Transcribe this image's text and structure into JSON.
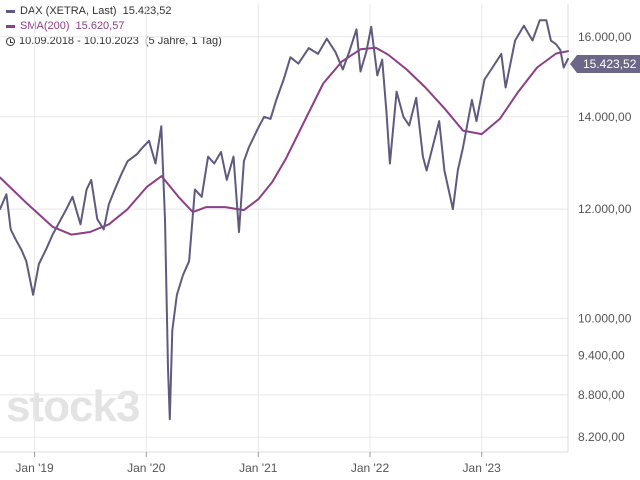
{
  "legend": {
    "dax_label": "DAX (XETRA, Last)",
    "dax_value": "15.423,52",
    "sma_label": "SMA(200)",
    "sma_value": "15.620,57",
    "range_label": "10.09.2018 - 10.10.2023",
    "range_detail": "(5 Jahre, 1 Tag)"
  },
  "watermark": "stock3",
  "colors": {
    "dax": "#5f5a7e",
    "sma": "#8e3d87",
    "grid": "#e8e8e8",
    "badge": "#6c6787"
  },
  "chart_data": {
    "type": "line",
    "log_scale": true,
    "grid": true,
    "ylim": [
      8000,
      16900
    ],
    "xlim": [
      "2018-09-10",
      "2023-10-10"
    ],
    "y_ticks": [
      8200,
      8800,
      9400,
      10000,
      12000,
      14000,
      16000
    ],
    "y_tick_labels": [
      "8.200,00",
      "8.800,00",
      "9.400,00",
      "10.000,00",
      "12.000,00",
      "14.000,00",
      "16.000,00"
    ],
    "x_ticks": [
      "2019-01-01",
      "2020-01-01",
      "2021-01-01",
      "2022-01-01",
      "2023-01-01"
    ],
    "x_tick_labels": [
      "Jan '19",
      "Jan '20",
      "Jan '21",
      "Jan '22",
      "Jan '23"
    ],
    "last_price_label": "15.423,52",
    "series": [
      {
        "name": "DAX (XETRA, Last)",
        "x": [
          "2018-09-10",
          "2018-10-01",
          "2018-10-15",
          "2018-11-01",
          "2018-11-20",
          "2018-12-05",
          "2018-12-27",
          "2019-01-15",
          "2019-02-10",
          "2019-03-01",
          "2019-04-15",
          "2019-05-05",
          "2019-05-31",
          "2019-06-20",
          "2019-07-05",
          "2019-07-25",
          "2019-08-15",
          "2019-09-01",
          "2019-09-20",
          "2019-10-10",
          "2019-11-01",
          "2019-12-01",
          "2019-12-20",
          "2020-01-10",
          "2020-01-31",
          "2020-02-19",
          "2020-03-02",
          "2020-03-12",
          "2020-03-18",
          "2020-03-26",
          "2020-04-10",
          "2020-04-30",
          "2020-05-20",
          "2020-06-08",
          "2020-06-30",
          "2020-07-21",
          "2020-08-10",
          "2020-09-01",
          "2020-09-20",
          "2020-10-12",
          "2020-10-30",
          "2020-11-15",
          "2020-12-01",
          "2020-12-30",
          "2021-01-20",
          "2021-02-10",
          "2021-03-01",
          "2021-03-25",
          "2021-04-16",
          "2021-05-12",
          "2021-06-15",
          "2021-07-15",
          "2021-08-13",
          "2021-09-10",
          "2021-10-04",
          "2021-10-25",
          "2021-11-18",
          "2021-12-01",
          "2021-12-20",
          "2022-01-05",
          "2022-01-25",
          "2022-02-10",
          "2022-02-24",
          "2022-03-07",
          "2022-03-29",
          "2022-04-20",
          "2022-05-09",
          "2022-06-01",
          "2022-06-23",
          "2022-07-05",
          "2022-08-15",
          "2022-09-01",
          "2022-09-29",
          "2022-10-15",
          "2022-11-01",
          "2022-11-30",
          "2022-12-15",
          "2023-01-10",
          "2023-02-01",
          "2023-03-06",
          "2023-03-20",
          "2023-04-20",
          "2023-05-19",
          "2023-06-16",
          "2023-07-10",
          "2023-07-31",
          "2023-08-15",
          "2023-09-01",
          "2023-09-15",
          "2023-09-26",
          "2023-10-10"
        ],
        "y": [
          12000,
          12300,
          11600,
          11400,
          11200,
          11000,
          10400,
          10950,
          11250,
          11500,
          12000,
          12250,
          11700,
          12400,
          12600,
          11800,
          11600,
          12100,
          12400,
          12700,
          13000,
          13150,
          13300,
          13450,
          12950,
          13780,
          11800,
          9200,
          8450,
          9800,
          10400,
          10750,
          11000,
          12400,
          12250,
          13100,
          12950,
          13200,
          12600,
          13100,
          11550,
          13000,
          13300,
          13720,
          14000,
          13950,
          14400,
          14900,
          15460,
          15300,
          15700,
          15550,
          15950,
          15600,
          15150,
          15600,
          16200,
          15100,
          15600,
          16270,
          15000,
          15400,
          14100,
          12950,
          14600,
          14000,
          13800,
          14450,
          13100,
          12800,
          13900,
          12800,
          12000,
          12800,
          13300,
          14400,
          13900,
          14900,
          15150,
          15550,
          14700,
          15900,
          16300,
          15900,
          16450,
          16450,
          15900,
          15800,
          15650,
          15200,
          15423.52
        ]
      },
      {
        "name": "SMA(200)",
        "x": [
          "2018-09-10",
          "2018-12-01",
          "2019-03-01",
          "2019-05-01",
          "2019-07-01",
          "2019-09-01",
          "2019-11-01",
          "2020-01-02",
          "2020-02-20",
          "2020-04-15",
          "2020-06-01",
          "2020-07-15",
          "2020-09-15",
          "2020-11-15",
          "2021-01-01",
          "2021-02-15",
          "2021-04-01",
          "2021-06-01",
          "2021-08-01",
          "2021-10-01",
          "2021-12-01",
          "2022-01-20",
          "2022-03-01",
          "2022-05-01",
          "2022-07-01",
          "2022-09-01",
          "2022-11-01",
          "2023-01-01",
          "2023-03-01",
          "2023-05-01",
          "2023-07-01",
          "2023-09-01",
          "2023-10-10"
        ],
        "y": [
          12650,
          12150,
          11650,
          11500,
          11550,
          11700,
          12000,
          12450,
          12680,
          12250,
          11940,
          12040,
          12040,
          11980,
          12200,
          12550,
          13050,
          13900,
          14800,
          15350,
          15670,
          15710,
          15530,
          15150,
          14700,
          14200,
          13680,
          13600,
          13950,
          14600,
          15200,
          15560,
          15620.57
        ]
      }
    ]
  }
}
